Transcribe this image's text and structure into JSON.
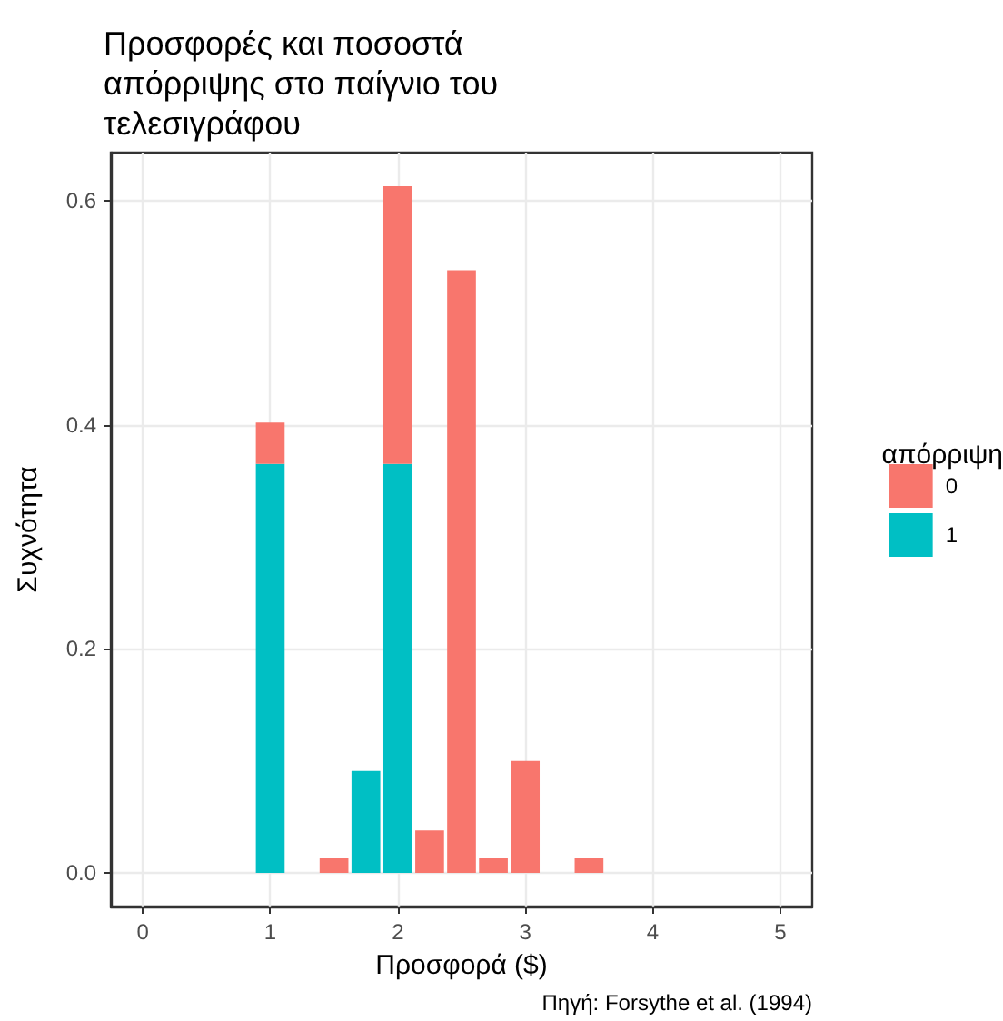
{
  "chart_data": {
    "type": "bar",
    "title": "Προσφορές και ποσοστά απόρριψης στο παίγνιο του τελεσιγράφου",
    "xlabel": "Προσφορά ($)",
    "ylabel": "Συχνότητα",
    "legend_title": "απόρριψη",
    "annotations": [
      "Πηγή: Forsythe et al. (1994)"
    ],
    "x": [
      1,
      1.5,
      1.75,
      2,
      2.25,
      2.5,
      2.75,
      3,
      3.5
    ],
    "series": [
      {
        "name": "1",
        "color": "#00bfc4",
        "values": [
          0.365,
          null,
          0.091,
          0.365,
          null,
          null,
          null,
          null,
          null
        ]
      },
      {
        "name": "0",
        "color": "#f8766d",
        "values": [
          0.037,
          0.013,
          null,
          0.248,
          0.038,
          0.538,
          0.013,
          0.1,
          0.013
        ]
      }
    ],
    "stacked": true,
    "xlim": [
      -0.25,
      5.25
    ],
    "xticks": [
      0,
      1,
      2,
      3,
      4,
      5
    ],
    "ylim": [
      -0.03,
      0.643
    ],
    "yticks": [
      {
        "value": 0,
        "label": "0.0"
      },
      {
        "value": 0.2,
        "label": "0.2"
      },
      {
        "value": 0.4,
        "label": "0.4"
      },
      {
        "value": 0.6,
        "label": "0.6"
      }
    ],
    "grid": true,
    "legend": "right"
  }
}
